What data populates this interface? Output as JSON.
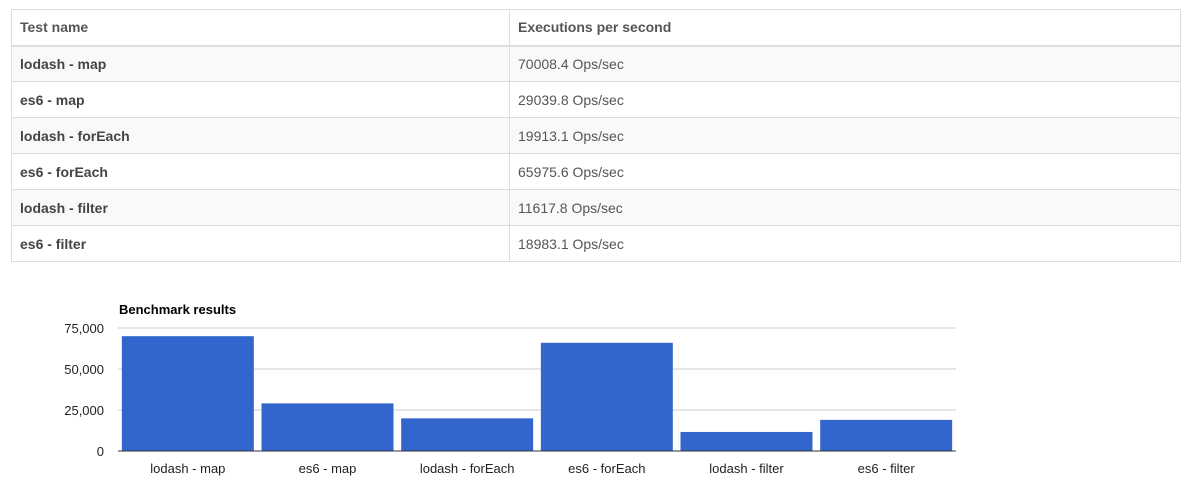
{
  "table": {
    "headers": [
      "Test name",
      "Executions per second"
    ],
    "rows": [
      {
        "name": "lodash - map",
        "ops": "70008.4 Ops/sec"
      },
      {
        "name": "es6 - map",
        "ops": "29039.8 Ops/sec"
      },
      {
        "name": "lodash - forEach",
        "ops": "19913.1 Ops/sec"
      },
      {
        "name": "es6 - forEach",
        "ops": "65975.6 Ops/sec"
      },
      {
        "name": "lodash - filter",
        "ops": "11617.8 Ops/sec"
      },
      {
        "name": "es6 - filter",
        "ops": "18983.1 Ops/sec"
      }
    ]
  },
  "chart_data": {
    "type": "bar",
    "title": "Benchmark results",
    "categories": [
      "lodash - map",
      "es6 - map",
      "lodash - forEach",
      "es6 - forEach",
      "lodash - filter",
      "es6 - filter"
    ],
    "values": [
      70008.4,
      29039.8,
      19913.1,
      65975.6,
      11617.8,
      18983.1
    ],
    "ylim": [
      0,
      75000
    ],
    "yticks": [
      0,
      25000,
      50000,
      75000
    ],
    "ytick_labels": [
      "0",
      "25,000",
      "50,000",
      "75,000"
    ],
    "xlabel": "",
    "ylabel": "",
    "bar_color": "#3366cc",
    "grid": true,
    "legend": "none"
  }
}
